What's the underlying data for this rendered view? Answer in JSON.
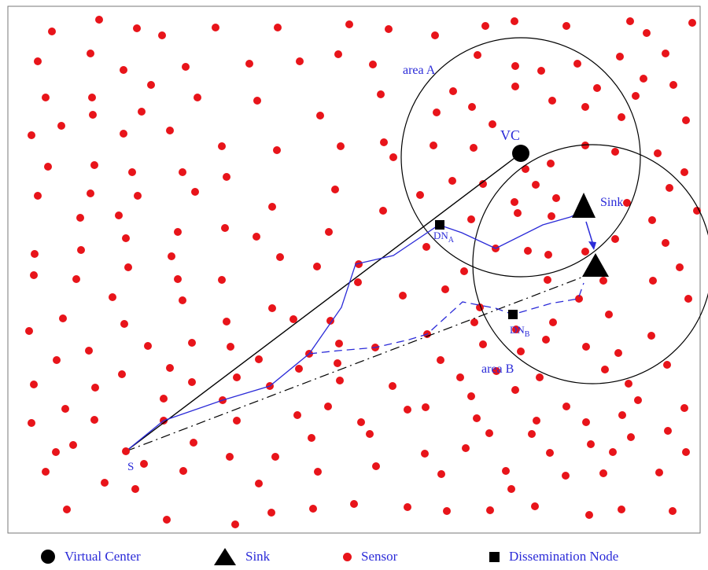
{
  "labels": {
    "area_a": "area A",
    "area_b": "area B",
    "vc": "VC",
    "sink": "Sink",
    "dn_a_main": "DN",
    "dn_a_sub": "A",
    "dn_b_main": "DN",
    "dn_b_sub": "B",
    "source": "S"
  },
  "legend": {
    "virtual_center": "Virtual Center",
    "sink": "Sink",
    "sensor": "Sensor",
    "dissemination_node": "Dissemination Node"
  },
  "colors": {
    "sensor": "#e8141a",
    "path": "#2b2bd8",
    "node": "#000000"
  }
}
